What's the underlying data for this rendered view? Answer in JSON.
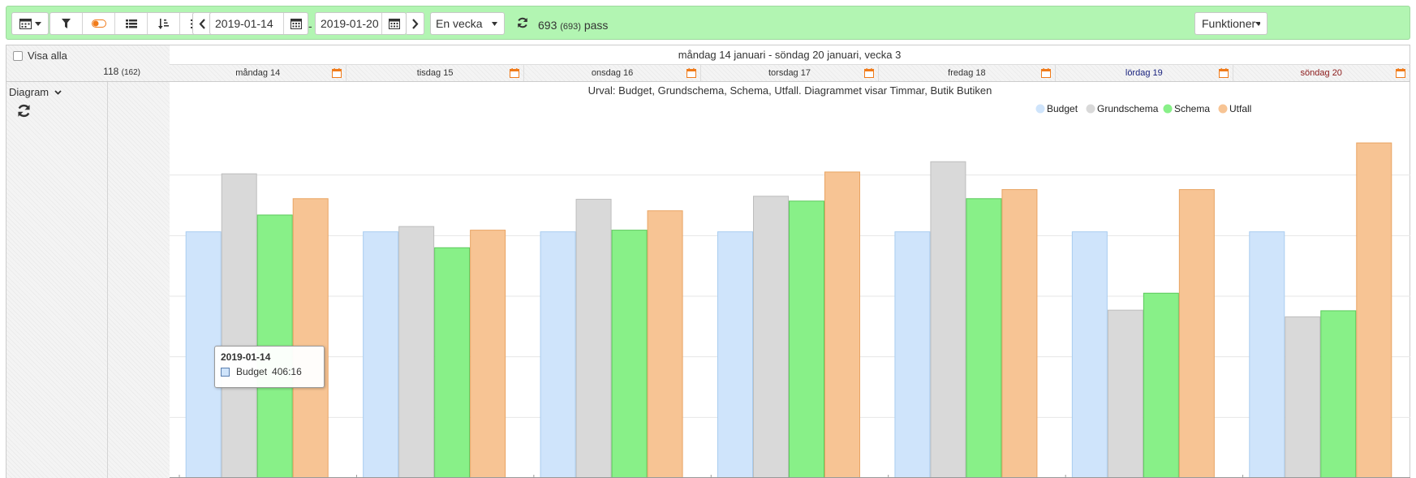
{
  "toolbar": {
    "date_from": "2019-01-14",
    "date_to": "2019-01-20",
    "date_separator": "-",
    "period_select": "En vecka",
    "count_main": "693",
    "count_paren": "(693)",
    "count_unit": "pass",
    "functions_label": "Funktioner",
    "accent_color": "#b2f5b2",
    "icons": [
      "calendar-icon",
      "filter-icon",
      "toggle-icon",
      "list-icon",
      "sort-icon",
      "menu-icon",
      "chevron-left-icon",
      "chevron-right-icon",
      "refresh-icon"
    ]
  },
  "left_panel": {
    "show_all_label": "Visa alla",
    "count_main": "118",
    "count_paren": "(162)",
    "diagram_label": "Diagram"
  },
  "header": {
    "week_title": "måndag 14 januari - söndag 20 januari, vecka 3",
    "days": [
      {
        "label": "måndag 14",
        "color": "#333333"
      },
      {
        "label": "tisdag 15",
        "color": "#333333"
      },
      {
        "label": "onsdag 16",
        "color": "#333333"
      },
      {
        "label": "torsdag 17",
        "color": "#333333"
      },
      {
        "label": "fredag 18",
        "color": "#333333"
      },
      {
        "label": "lördag 19",
        "color": "#1a237e"
      },
      {
        "label": "söndag 20",
        "color": "#8b1a1a"
      }
    ]
  },
  "chart_data": {
    "type": "bar",
    "title": "Urval: Budget, Grundschema, Schema, Utfall. Diagrammet visar Timmar, Butik Butiken",
    "legend_position": "top-right",
    "grid": true,
    "categories": [
      "måndag 14",
      "tisdag 15",
      "onsdag 16",
      "torsdag 17",
      "fredag 18",
      "lördag 19",
      "söndag 20"
    ],
    "series": [
      {
        "name": "Budget",
        "color": "#cfe4fb",
        "stroke": "#a9cdf0",
        "values": [
          406.3,
          406.3,
          406.3,
          406.3,
          406.3,
          406.3,
          406.3
        ]
      },
      {
        "name": "Grundschema",
        "color": "#d9d9d9",
        "stroke": "#bdbdbd",
        "values": [
          502,
          415,
          460,
          465,
          522,
          277,
          266
        ]
      },
      {
        "name": "Schema",
        "color": "#88f088",
        "stroke": "#5cc95c",
        "values": [
          434,
          380,
          409,
          457,
          461,
          305,
          276
        ]
      },
      {
        "name": "Utfall",
        "color": "#f7c494",
        "stroke": "#e9a463",
        "values": [
          461,
          409,
          441,
          505,
          476,
          476,
          553
        ]
      }
    ],
    "ylim": [
      0,
      600
    ],
    "y_gridlines": [
      100,
      200,
      300,
      400,
      500
    ],
    "tooltip": {
      "title": "2019-01-14",
      "series": "Budget",
      "value": "406:16"
    }
  }
}
